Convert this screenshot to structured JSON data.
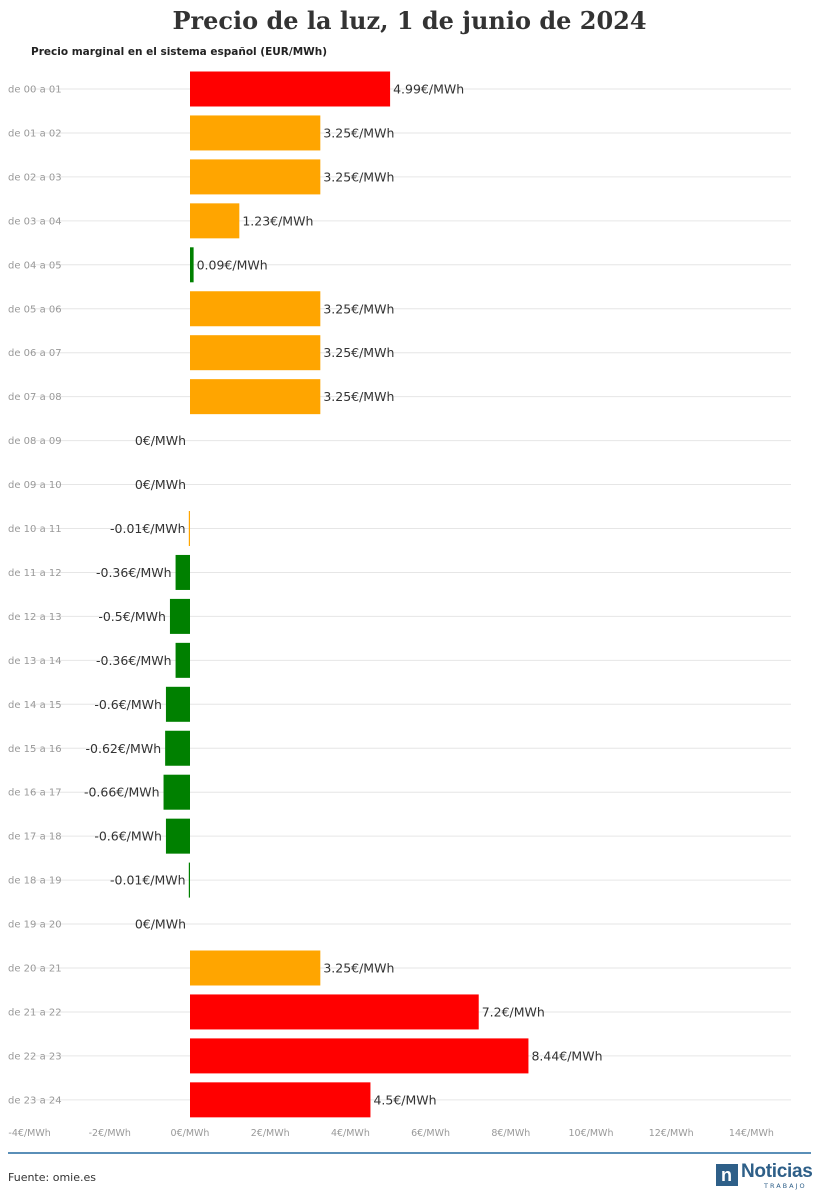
{
  "title": "Precio de la luz, 1 de junio de 2024",
  "subtitle": "Precio marginal en el sistema español (EUR/MWh)",
  "source": "Fuente: omie.es",
  "logo": {
    "main": "Noticias",
    "sub": "TRABAJO",
    "mark": "n"
  },
  "colors": {
    "red": "#ff0000",
    "orange": "#ffa500",
    "green": "#008000",
    "grid": "#e6e6e6",
    "footer_line": "#5a8fb8",
    "logo": "#2e5f88"
  },
  "chart_data": {
    "type": "bar",
    "orientation": "horizontal",
    "title": "Precio de la luz, 1 de junio de 2024",
    "subtitle": "Precio marginal en el sistema español (EUR/MWh)",
    "xlim": [
      -4,
      15
    ],
    "x_ticks": [
      -4,
      -2,
      0,
      2,
      4,
      6,
      8,
      10,
      12,
      14
    ],
    "x_tick_labels": [
      "-4€/MWh",
      "-2€/MWh",
      "0€/MWh",
      "2€/MWh",
      "4€/MWh",
      "6€/MWh",
      "8€/MWh",
      "10€/MWh",
      "12€/MWh",
      "14€/MWh"
    ],
    "grid": true,
    "categories": [
      "de 00 a 01",
      "de 01 a 02",
      "de 02 a 03",
      "de 03 a 04",
      "de 04 a 05",
      "de 05 a 06",
      "de 06 a 07",
      "de 07 a 08",
      "de 08 a 09",
      "de 09 a 10",
      "de 10 a 11",
      "de 11 a 12",
      "de 12 a 13",
      "de 13 a 14",
      "de 14 a 15",
      "de 15 a 16",
      "de 16 a 17",
      "de 17 a 18",
      "de 18 a 19",
      "de 19 a 20",
      "de 20 a 21",
      "de 21 a 22",
      "de 22 a 23",
      "de 23 a 24"
    ],
    "values": [
      4.99,
      3.25,
      3.25,
      1.23,
      0.09,
      3.25,
      3.25,
      3.25,
      0,
      0,
      -0.01,
      -0.36,
      -0.5,
      -0.36,
      -0.6,
      -0.62,
      -0.66,
      -0.6,
      -0.01,
      0,
      3.25,
      7.2,
      8.44,
      4.5
    ],
    "labels": [
      "4.99€/MWh",
      "3.25€/MWh",
      "3.25€/MWh",
      "1.23€/MWh",
      "0.09€/MWh",
      "3.25€/MWh",
      "3.25€/MWh",
      "3.25€/MWh",
      "0€/MWh",
      "0€/MWh",
      "-0.01€/MWh",
      "-0.36€/MWh",
      "-0.5€/MWh",
      "-0.36€/MWh",
      "-0.6€/MWh",
      "-0.62€/MWh",
      "-0.66€/MWh",
      "-0.6€/MWh",
      "-0.01€/MWh",
      "0€/MWh",
      "3.25€/MWh",
      "7.2€/MWh",
      "8.44€/MWh",
      "4.5€/MWh"
    ],
    "bar_colors": [
      "red",
      "orange",
      "orange",
      "orange",
      "green",
      "orange",
      "orange",
      "orange",
      "orange",
      "orange",
      "orange",
      "green",
      "green",
      "green",
      "green",
      "green",
      "green",
      "green",
      "green",
      "orange",
      "orange",
      "red",
      "red",
      "red"
    ]
  }
}
